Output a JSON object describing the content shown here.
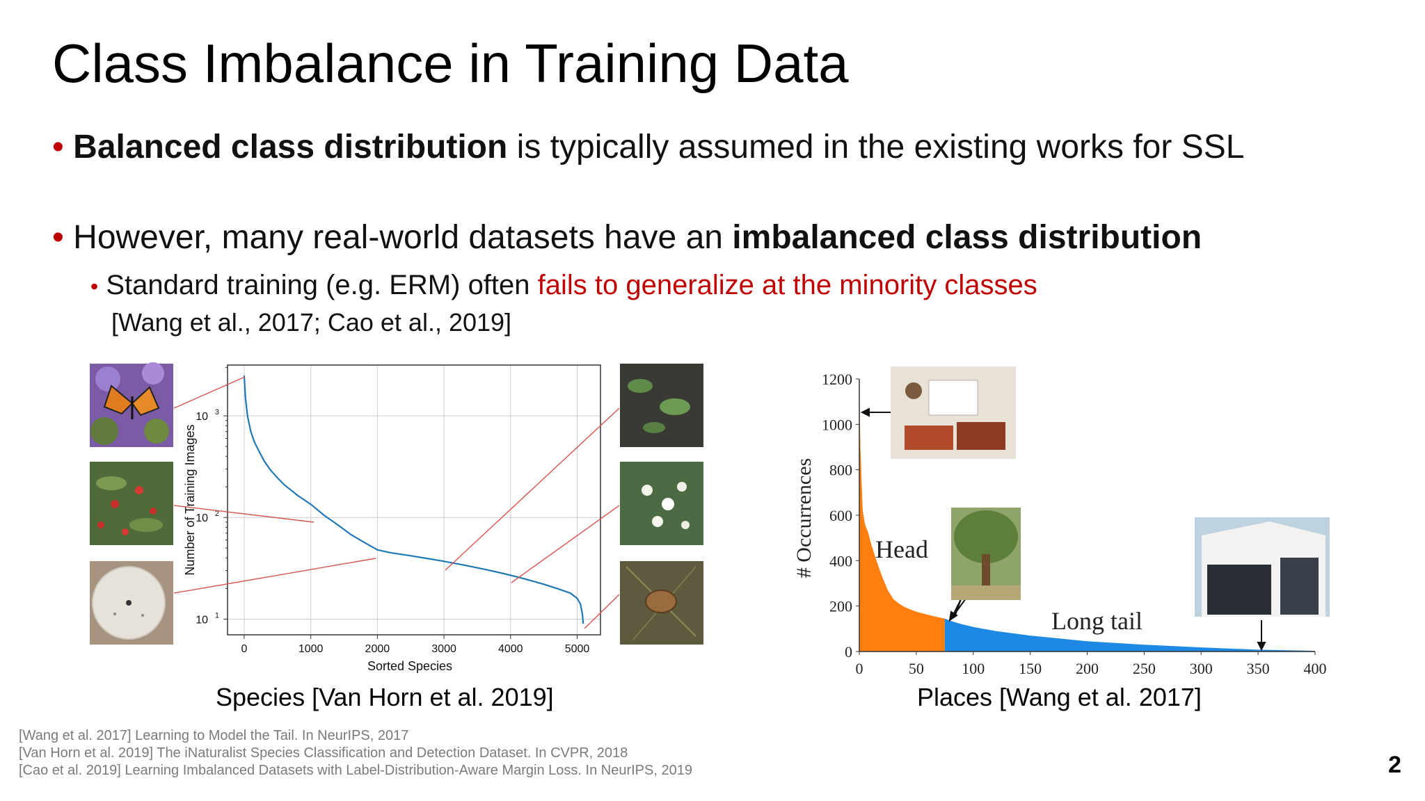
{
  "slide": {
    "title": "Class Imbalance in Training Data",
    "page_number": "2",
    "bullets": [
      {
        "bold": "Balanced class distribution",
        "rest": " is typically assumed in the existing works for SSL"
      },
      {
        "pre": "However, many real-world datasets have an ",
        "bold": "imbalanced class distribution"
      }
    ],
    "sub_bullet": {
      "pre": "Standard training (e.g. ERM) often ",
      "highlight": "fails to generalize at the minority classes",
      "cite": "[Wang et al., 2017; Cao et al., 2019]"
    },
    "bullet_char": "•",
    "left_caption": "Species [Van Horn et al. 2019]",
    "right_caption": "Places [Wang et al. 2017]",
    "references": [
      "[Wang et al. 2017] Learning to Model the Tail. In NeurIPS, 2017",
      "[Van Horn et al. 2019] The iNaturalist Species Classification and Detection Dataset. In CVPR, 2018",
      "[Cao et al. 2019] Learning Imbalanced Datasets with Label-Distribution-Aware Margin Loss. In NeurIPS, 2019"
    ],
    "colors": {
      "accent_red": "#c00000",
      "curve_blue": "#1f77b4",
      "head_orange": "#ff7f0e",
      "tail_blue": "#1e88e5",
      "connector_red": "#d9534f"
    },
    "photos_left": [
      "butterfly-on-aster-photo",
      "red-berry-shrub-photo",
      "sand-dollar-photo"
    ],
    "photos_right": [
      "low-plant-on-soil-photo",
      "white-flowers-photo",
      "dry-brown-seedpod-photo"
    ],
    "photos_places": [
      "living-room-photo",
      "tree-in-field-photo",
      "library-building-photo"
    ]
  },
  "chart_data": [
    {
      "type": "line",
      "xlabel": "Sorted Species",
      "ylabel": "Number of Training Images",
      "yscale": "log",
      "xlim": [
        -250,
        5350
      ],
      "ylim": [
        7,
        3162
      ],
      "xticks": [
        0,
        1000,
        2000,
        3000,
        4000,
        5000
      ],
      "xtick_labels": [
        "0",
        "1000",
        "2000",
        "3000",
        "4000",
        "5000"
      ],
      "yticks": [
        10,
        100,
        1000
      ],
      "ytick_labels": [
        {
          "base": "10",
          "exp": "1"
        },
        {
          "base": "10",
          "exp": "2"
        },
        {
          "base": "10",
          "exp": "3"
        }
      ],
      "grid": true,
      "series": [
        {
          "x": [
            0,
            20,
            50,
            100,
            150,
            200,
            300,
            400,
            500,
            600,
            800,
            1000,
            1200,
            1400,
            1600,
            1800,
            2000,
            2200,
            2500,
            2800,
            3000,
            3300,
            3600,
            3900,
            4200,
            4500,
            4700,
            4900,
            5000,
            5050,
            5080,
            5090
          ],
          "y": [
            2500,
            1500,
            1000,
            700,
            560,
            480,
            360,
            290,
            245,
            210,
            165,
            135,
            105,
            85,
            68,
            57,
            48,
            45,
            42,
            39,
            37,
            34,
            31,
            28,
            25,
            22,
            20,
            18,
            16,
            14,
            11,
            9
          ]
        }
      ]
    },
    {
      "type": "area",
      "ylabel": "# Occurrences",
      "xlim": [
        0,
        400
      ],
      "ylim": [
        0,
        1200
      ],
      "xticks": [
        0,
        50,
        100,
        150,
        200,
        250,
        300,
        350,
        400
      ],
      "yticks": [
        0,
        200,
        400,
        600,
        800,
        1000,
        1200
      ],
      "annotations": [
        "Head",
        "Long tail"
      ],
      "head_until": 75,
      "series": [
        {
          "x": [
            0,
            1,
            2,
            3,
            5,
            8,
            10,
            15,
            20,
            25,
            30,
            35,
            40,
            45,
            50,
            60,
            70,
            75,
            80,
            90,
            100,
            120,
            150,
            180,
            200,
            250,
            300,
            350,
            400
          ],
          "y": [
            1140,
            900,
            750,
            620,
            560,
            520,
            480,
            400,
            330,
            270,
            230,
            210,
            195,
            185,
            175,
            162,
            150,
            145,
            135,
            120,
            108,
            90,
            70,
            55,
            45,
            30,
            18,
            8,
            3
          ]
        }
      ]
    }
  ]
}
